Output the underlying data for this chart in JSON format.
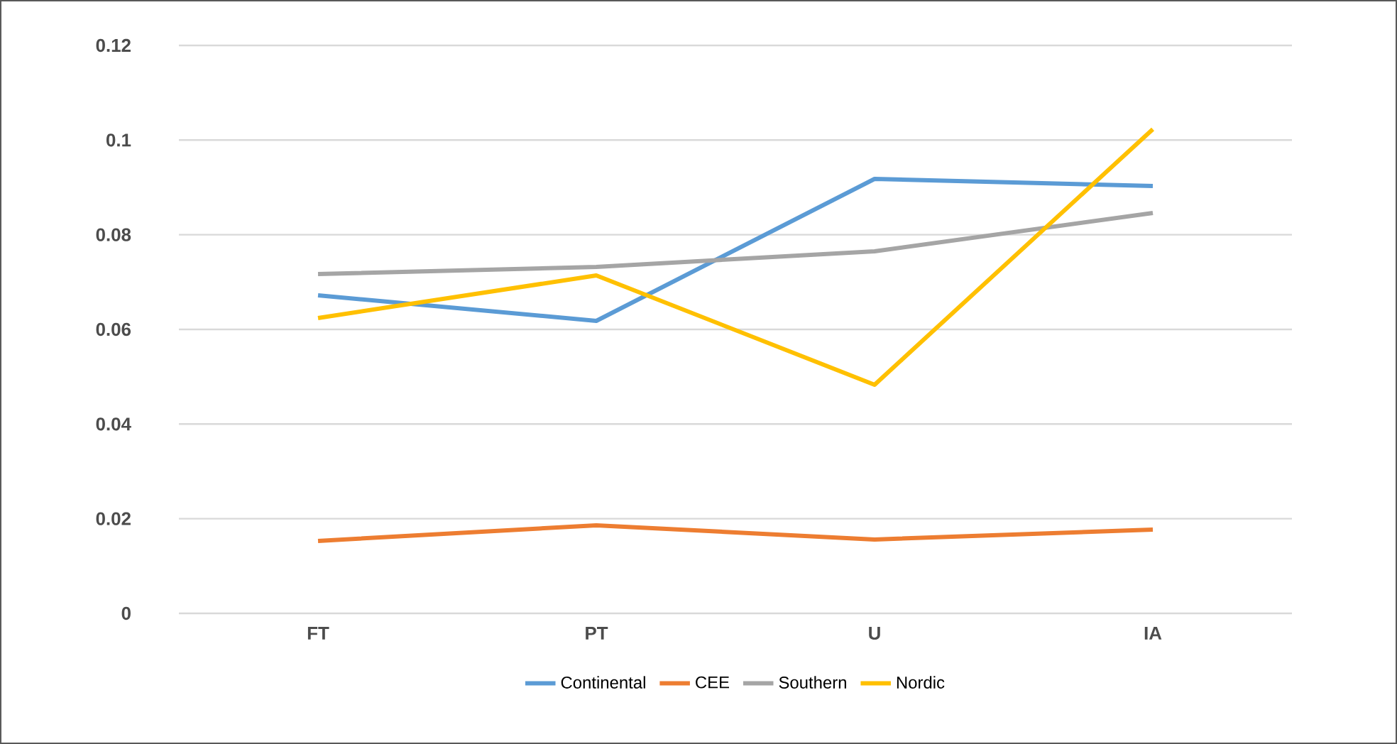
{
  "chart_data": {
    "type": "line",
    "categories": [
      "FT",
      "PT",
      "U",
      "IA"
    ],
    "series": [
      {
        "name": "Continental",
        "color": "#5b9bd5",
        "values": [
          0.0672,
          0.0618,
          0.0918,
          0.0903
        ]
      },
      {
        "name": "CEE",
        "color": "#ed7d31",
        "values": [
          0.0153,
          0.0186,
          0.0156,
          0.0177
        ]
      },
      {
        "name": "Southern",
        "color": "#a5a5a5",
        "values": [
          0.0717,
          0.0732,
          0.0765,
          0.0846
        ]
      },
      {
        "name": "Nordic",
        "color": "#ffc000",
        "values": [
          0.0624,
          0.0714,
          0.0483,
          0.1023
        ]
      }
    ],
    "ylim": [
      0,
      0.12
    ],
    "yticks": [
      0,
      0.02,
      0.04,
      0.06,
      0.08,
      0.1,
      0.12
    ],
    "grid": "y",
    "legend": "bottom",
    "marker": "none",
    "line_style": "solid"
  }
}
